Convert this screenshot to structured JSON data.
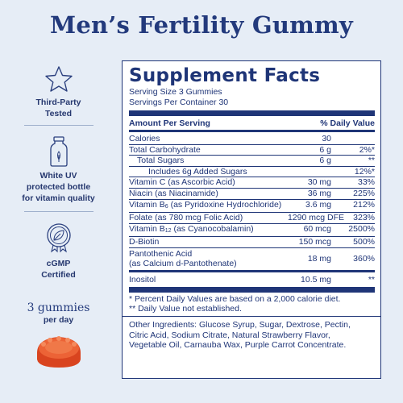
{
  "title": "Men’s Fertility Gummy",
  "badges": [
    {
      "icon": "star-icon",
      "label_lines": [
        "Third-Party",
        "Tested"
      ]
    },
    {
      "icon": "bottle-icon",
      "label_lines": [
        "White UV",
        "protected bottle",
        "for vitamin quality"
      ]
    },
    {
      "icon": "leaf-seal-icon",
      "label_lines": [
        "cGMP",
        "Certified"
      ]
    }
  ],
  "dosage": {
    "count": "3 gummies",
    "frequency": "per day"
  },
  "colors": {
    "navy": "#1f3577",
    "background": "#e6edf6",
    "gummy": "#e5502c"
  },
  "facts": {
    "heading": "Supplement Facts",
    "serving_size": "Serving Size 3 Gummies",
    "servings_per_container": "Servings Per Container 30",
    "col_amount": "Amount Per Serving",
    "col_dv": "% Daily Value",
    "rows": [
      {
        "name": "Calories",
        "amount": "30",
        "dv": ""
      },
      {
        "name": "Total Carbohydrate",
        "amount": "6 g",
        "dv": "2%*"
      },
      {
        "name": "Total Sugars",
        "amount": "6 g",
        "dv": "**"
      },
      {
        "name": "Includes 6g Added Sugars",
        "amount": "",
        "dv": "12%*"
      },
      {
        "name": "Vitamin C (as Ascorbic Acid)",
        "amount": "30 mg",
        "dv": "33%"
      },
      {
        "name": "Niacin (as Niacinamide)",
        "amount": "36 mg",
        "dv": "225%"
      },
      {
        "name_pre": "Vitamin B",
        "name_sub": "6",
        "name_post": " (as Pyridoxine Hydrochloride)",
        "amount": "3.6 mg",
        "dv": "212%"
      },
      {
        "name": "Folate (as 780 mcg Folic Acid)",
        "amount": "1290 mcg DFE",
        "dv": "323%"
      },
      {
        "name_pre": "Vitamin B",
        "name_sub": "12",
        "name_post": " (as Cyanocobalamin)",
        "amount": "60 mcg",
        "dv": "2500%"
      },
      {
        "name": "D-Biotin",
        "amount": "150 mcg",
        "dv": "500%"
      },
      {
        "name_line1": "Pantothenic Acid",
        "name_line2": "(as Calcium d-Pantothenate)",
        "amount": "18 mg",
        "dv": "360%"
      },
      {
        "name": "Inositol",
        "amount": "10.5 mg",
        "dv": "**"
      }
    ],
    "footnote_1": "* Percent Daily Values are based on a 2,000 calorie diet.",
    "footnote_2": "** Daily Value not established.",
    "ingredients_lines": [
      "Other Ingredients: Glucose Syrup, Sugar, Dextrose, Pectin,",
      "Citric Acid, Sodium Citrate, Natural Strawberry Flavor,",
      "Vegetable Oil, Carnauba Wax, Purple Carrot Concentrate."
    ]
  }
}
